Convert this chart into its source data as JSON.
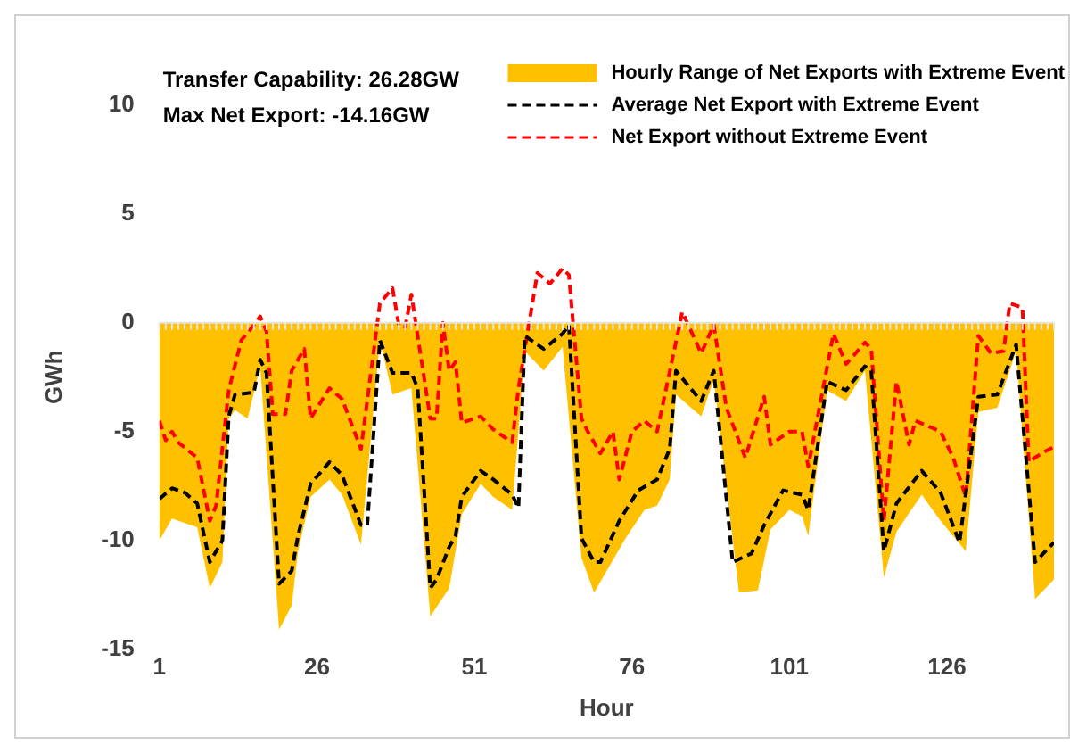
{
  "chart_data": {
    "type": "line",
    "xlabel": "Hour",
    "ylabel": "GWh",
    "xlim": [
      1,
      143
    ],
    "xticks": [
      1,
      26,
      51,
      76,
      101,
      126
    ],
    "ylim": [
      -15,
      10
    ],
    "yticks": [
      -15,
      -10,
      -5,
      0,
      5,
      10
    ],
    "legend": "top right",
    "line_style": "dashed",
    "marker": "none",
    "annotations": [
      "Transfer Capability: 26.28GW",
      "Max Net Export: -14.16GW"
    ],
    "series": [
      {
        "type": "area",
        "name": "Hourly Range of Net Exports with Extreme Event",
        "color": "#ffc000",
        "x": [
          1,
          3,
          7,
          9,
          11,
          12,
          13,
          15,
          17,
          20,
          22,
          23,
          25,
          28,
          30,
          33,
          36,
          38,
          41,
          44,
          47,
          49,
          52,
          54,
          57,
          59,
          62,
          65,
          68,
          70,
          75,
          78,
          80,
          82,
          83,
          87,
          89,
          93,
          96,
          98,
          101,
          103,
          104,
          107,
          110,
          113,
          116,
          118,
          122,
          125,
          129,
          131,
          134,
          137,
          140,
          143
        ],
        "values": [
          -10,
          -9,
          -9.4,
          -12.2,
          -11,
          -4.4,
          -4,
          -4.4,
          -2,
          -14.1,
          -13,
          -10.5,
          -8,
          -7.2,
          -7.9,
          -10.2,
          -0.8,
          -3.3,
          -3,
          -13.5,
          -12.2,
          -8.8,
          -7.4,
          -8,
          -8.6,
          -1.3,
          -2.2,
          -1.1,
          -10.8,
          -12.4,
          -9.9,
          -8.6,
          -8.4,
          -7.2,
          -3.3,
          -4.3,
          -2.6,
          -12.4,
          -12.3,
          -9.5,
          -8.6,
          -8.9,
          -9.8,
          -3.1,
          -3.6,
          -2.2,
          -11.7,
          -9.6,
          -7.9,
          -9.1,
          -10.5,
          -4.1,
          -3.9,
          -1.3,
          -12.7,
          -11.8
        ]
      },
      {
        "type": "line",
        "name": "Average Net Export with Extreme Event",
        "color": "#000000",
        "x": [
          1,
          3,
          5,
          7,
          9,
          11,
          12,
          13,
          16,
          17,
          18,
          20,
          22,
          23,
          25,
          28,
          30,
          33,
          34,
          36,
          38,
          41,
          42,
          44,
          45,
          47,
          48,
          49,
          52,
          54,
          57,
          58,
          59,
          62,
          65,
          66,
          68,
          70,
          71,
          74,
          77,
          80,
          82,
          83,
          87,
          89,
          92,
          95,
          97,
          100,
          103,
          104,
          107,
          110,
          113,
          114,
          116,
          118,
          122,
          125,
          128,
          131,
          134,
          137,
          140,
          143
        ],
        "values": [
          -8.1,
          -7.6,
          -7.8,
          -8.3,
          -11,
          -10,
          -4.3,
          -3.3,
          -3.2,
          -1.7,
          -2.3,
          -12,
          -11.4,
          -9.8,
          -7.4,
          -6.4,
          -7,
          -9.3,
          -9.3,
          -0.8,
          -2.3,
          -2.3,
          -3,
          -12.2,
          -11.8,
          -10.3,
          -9.8,
          -8,
          -6.8,
          -7.2,
          -7.9,
          -8.5,
          -0.6,
          -1.2,
          -0.5,
          -0.1,
          -9.9,
          -11,
          -11,
          -9.1,
          -7.7,
          -7.2,
          -5.8,
          -2.2,
          -3.6,
          -2.2,
          -11,
          -10.6,
          -9.3,
          -7.7,
          -7.9,
          -8.6,
          -2.7,
          -3.1,
          -2,
          -2.2,
          -10.5,
          -8.3,
          -6.8,
          -7.8,
          -10.1,
          -3.4,
          -3.3,
          -1,
          -11,
          -10.1
        ]
      },
      {
        "type": "line",
        "name": "Net Export without Extreme Event",
        "color": "#ff0000",
        "x": [
          1,
          2,
          3,
          4,
          7,
          9,
          10,
          12,
          14,
          16,
          17,
          18,
          19,
          21,
          22,
          24,
          25,
          28,
          30,
          33,
          36,
          38,
          39,
          40,
          41,
          44,
          45,
          46,
          47,
          48,
          49,
          52,
          54,
          57,
          58,
          61,
          63,
          65,
          66,
          68,
          69,
          71,
          73,
          74,
          76,
          78,
          80,
          84,
          87,
          89,
          91,
          94,
          97,
          98,
          101,
          103,
          104,
          108,
          110,
          113,
          114,
          116,
          118,
          120,
          121,
          125,
          127,
          129,
          131,
          133,
          135,
          136,
          138,
          139,
          141,
          143
        ],
        "values": [
          -4.5,
          -5.4,
          -5,
          -5.5,
          -6.2,
          -9.1,
          -8.4,
          -3.1,
          -0.8,
          -0.1,
          0.3,
          -0.4,
          -4.2,
          -4.2,
          -2.2,
          -1.2,
          -4.4,
          -3,
          -3.5,
          -5.8,
          0.9,
          1.6,
          -0.1,
          -0.2,
          1.3,
          -4.4,
          -4.4,
          0,
          -2.2,
          -1.8,
          -4.6,
          -4.3,
          -4.9,
          -5.5,
          -3,
          2.3,
          1.8,
          2.5,
          2.2,
          -4.4,
          -5,
          -6,
          -5,
          -7.2,
          -5,
          -4.5,
          -5,
          0.5,
          -1.4,
          -0.1,
          -3.9,
          -6.2,
          -3.4,
          -5.6,
          -5,
          -5,
          -6.6,
          -0.5,
          -1.9,
          -0.9,
          -1.2,
          -9.1,
          -2.7,
          -5.6,
          -4.5,
          -5,
          -6.2,
          -8,
          -0.6,
          -1.4,
          -1.3,
          0.9,
          0.7,
          -6.4,
          -6,
          -5.7
        ]
      }
    ]
  }
}
